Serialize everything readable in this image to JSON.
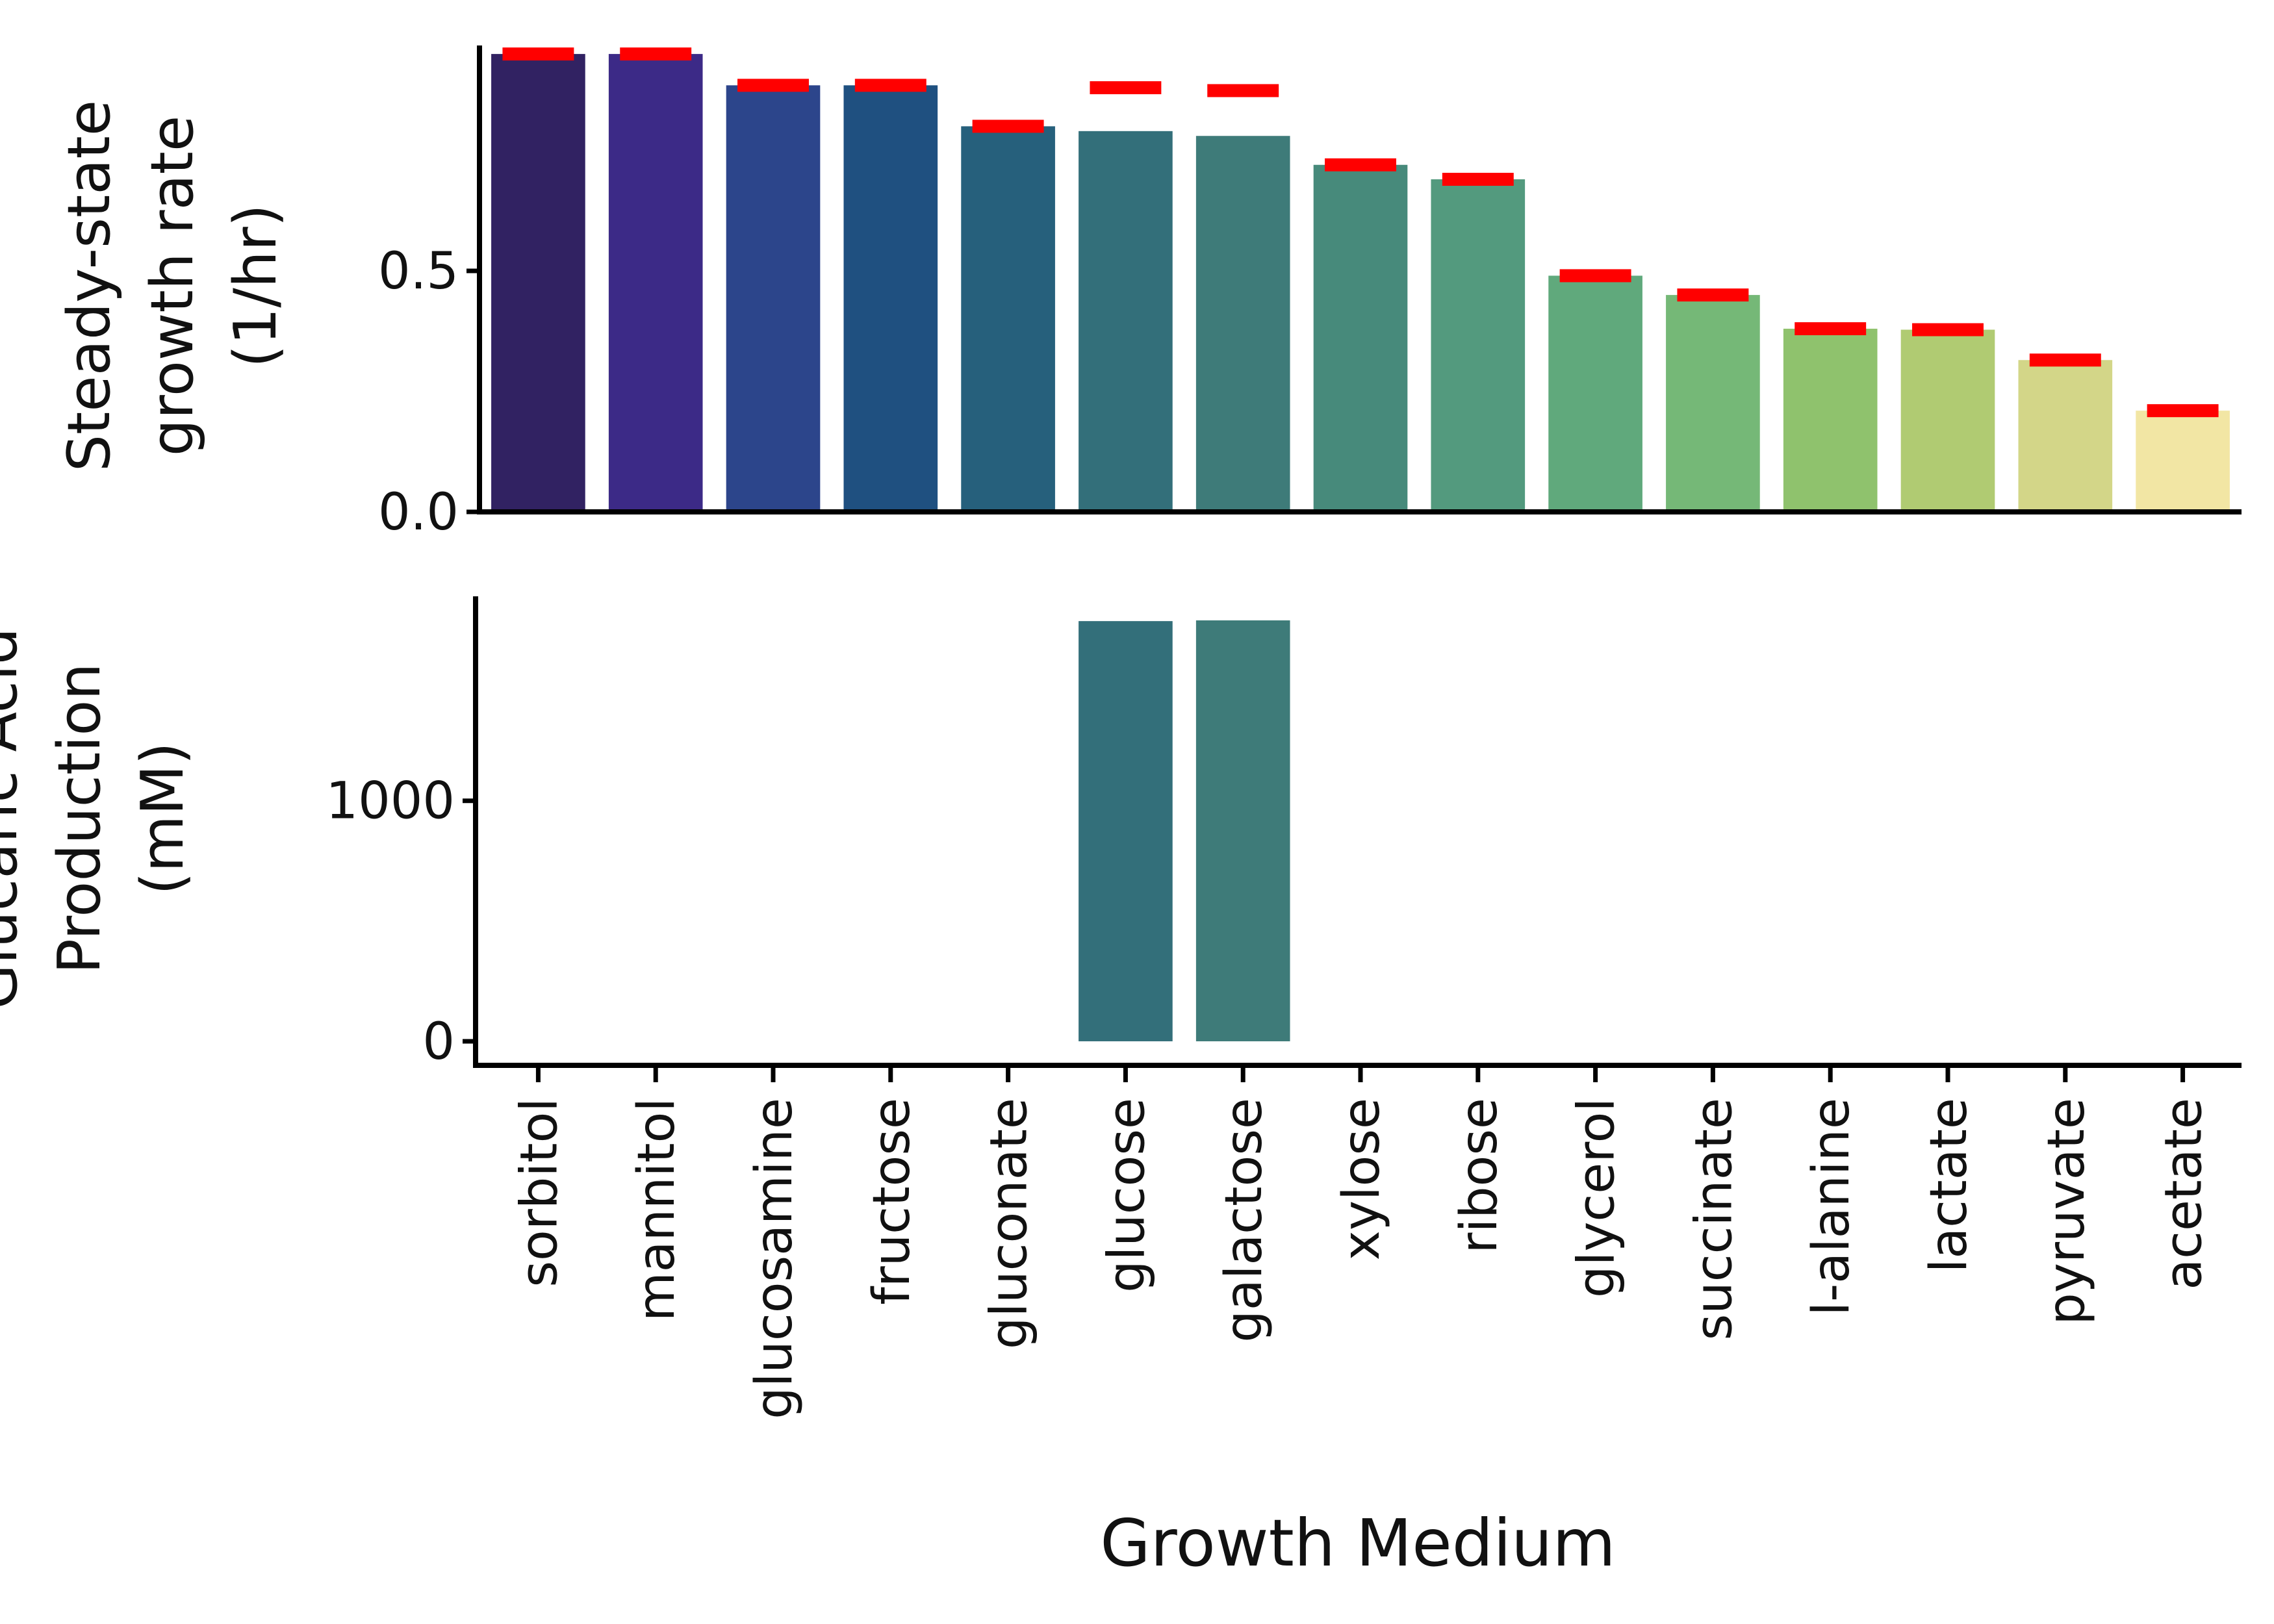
{
  "chart_data": [
    {
      "type": "bar",
      "ylabel_lines": [
        "Steady-state",
        "growth rate",
        "(1/hr)"
      ],
      "yticks": [
        0.0,
        0.5
      ],
      "ytick_labels": [
        "0.0",
        "0.5"
      ],
      "ylim": [
        0,
        1.0
      ],
      "series": [
        {
          "values": [
            0.95,
            0.95,
            0.885,
            0.885,
            0.8,
            0.79,
            0.78,
            0.72,
            0.69,
            0.49,
            0.45,
            0.38,
            0.378,
            0.315,
            0.21
          ]
        },
        {
          "marker": "red-dash",
          "values": [
            0.95,
            0.95,
            0.885,
            0.885,
            0.8,
            0.88,
            0.874,
            0.72,
            0.69,
            0.49,
            0.45,
            0.38,
            0.378,
            0.315,
            0.21
          ]
        }
      ],
      "grid": false,
      "legend": "none"
    },
    {
      "type": "bar",
      "ylabel_lines": [
        "Glucaric Acid",
        "Production",
        "(mM)"
      ],
      "yticks": [
        0,
        1000
      ],
      "ytick_labels": [
        "0",
        "1000"
      ],
      "ylim": [
        -100,
        1850
      ],
      "values": [
        0,
        0,
        0,
        0,
        0,
        1747,
        1750,
        0,
        0,
        0,
        0,
        0,
        0,
        0,
        0
      ],
      "grid": false,
      "legend": "none"
    }
  ],
  "categories": [
    "sorbitol",
    "mannitol",
    "glucosamine",
    "fructose",
    "gluconate",
    "glucose",
    "galactose",
    "xylose",
    "ribose",
    "glycerol",
    "succinate",
    "l-alanine",
    "lactate",
    "pyruvate",
    "acetate"
  ],
  "xlabel": "Growth Medium",
  "colors": {
    "bars": [
      "#312262",
      "#3c2a87",
      "#2c458b",
      "#1f5080",
      "#26607c",
      "#336f7a",
      "#3e7b79",
      "#478a7b",
      "#539a7e",
      "#60a97c",
      "#75b877",
      "#8fc26d",
      "#b0cb72",
      "#d3d688",
      "#f2e6a4"
    ],
    "marker": "#ff0000",
    "axis": "#000000"
  }
}
